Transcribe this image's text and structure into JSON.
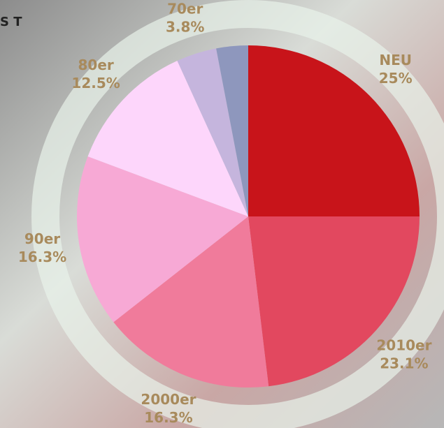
{
  "corner_text": "S T",
  "chart_data": {
    "type": "pie",
    "categories": [
      "NEU",
      "2010er",
      "2000er",
      "90er",
      "80er",
      "70er",
      null
    ],
    "values": [
      25,
      23.1,
      16.3,
      16.3,
      12.5,
      3.8,
      3.0
    ],
    "value_labels": [
      "25%",
      "23.1%",
      "16.3%",
      "16.3%",
      "12.5%",
      "3.8%",
      null
    ],
    "colors": [
      "#c8141a",
      "#e2485f",
      "#f07b9b",
      "#f7a9d5",
      "#fdd6fb",
      "#c5b5dd",
      "#8e97bd"
    ],
    "label_color": "#a88a5c"
  }
}
